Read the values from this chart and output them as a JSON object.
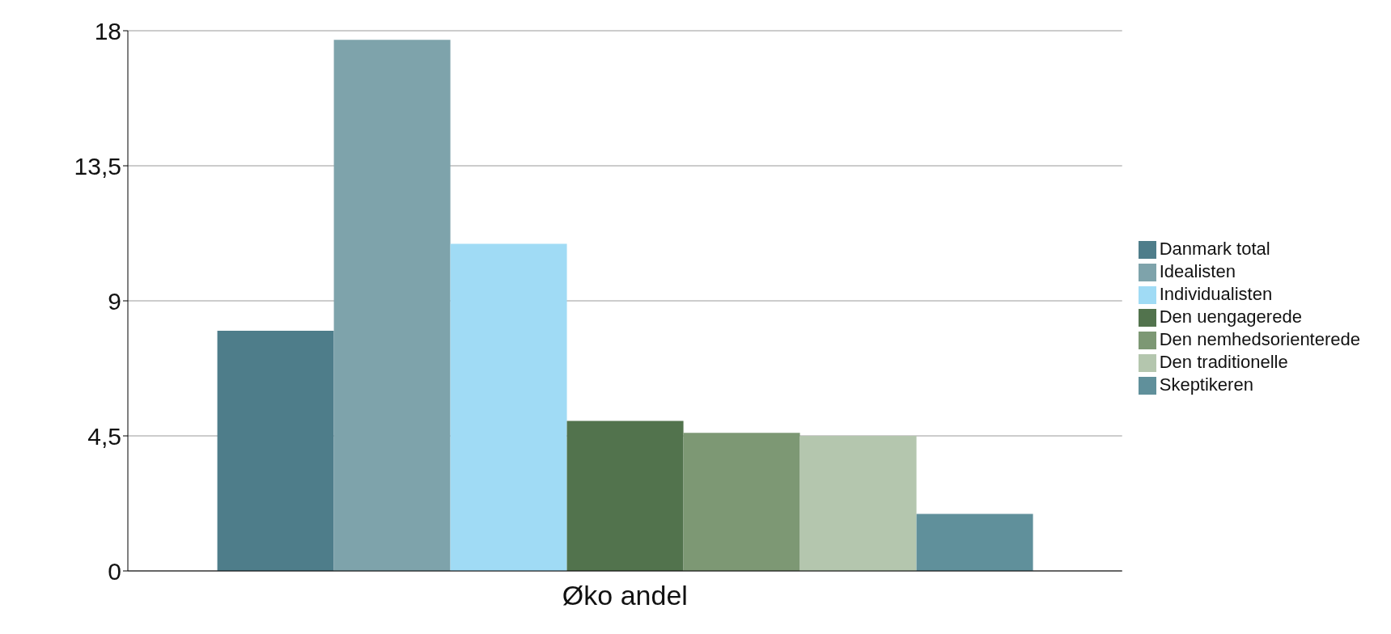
{
  "chart_data": {
    "type": "bar",
    "categories": [
      "Øko andel"
    ],
    "series": [
      {
        "name": "Danmark total",
        "color": "#4e7d8a",
        "values": [
          8.0
        ]
      },
      {
        "name": "Idealisten",
        "color": "#7ea3ab",
        "values": [
          17.7
        ]
      },
      {
        "name": "Individualisten",
        "color": "#a0dbf5",
        "values": [
          10.9
        ]
      },
      {
        "name": "Den uengagerede",
        "color": "#52734d",
        "values": [
          5.0
        ]
      },
      {
        "name": "Den nemhedsorienterede",
        "color": "#7d9874",
        "values": [
          4.6
        ]
      },
      {
        "name": "Den traditionelle",
        "color": "#b4c6ae",
        "values": [
          4.5
        ]
      },
      {
        "name": "Skeptikeren",
        "color": "#60909b",
        "values": [
          1.9
        ]
      }
    ],
    "ylim": [
      0,
      18
    ],
    "yticks": [
      0,
      {
        "value": 4.5,
        "label": "4,5"
      },
      9,
      {
        "value": 13.5,
        "label": "13,5"
      },
      18
    ],
    "grid": "y",
    "legend": "right"
  }
}
